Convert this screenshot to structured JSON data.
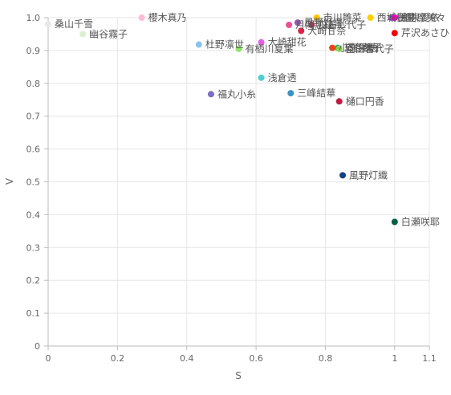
{
  "chart_data": {
    "type": "scatter",
    "xlabel": "S",
    "ylabel": "V",
    "xlim": [
      0,
      1.1
    ],
    "ylim": [
      0,
      1.0
    ],
    "x_ticks": [
      "0",
      "0.2",
      "0.4",
      "0.6",
      "0.8",
      "1",
      "1.1"
    ],
    "y_ticks": [
      "0",
      "0.1",
      "0.2",
      "0.3",
      "0.4",
      "0.5",
      "0.6",
      "0.7",
      "0.8",
      "0.9",
      "1.0"
    ],
    "grid": true,
    "points": [
      {
        "label": "桑山千雪",
        "x": 0.0,
        "y": 0.98,
        "color": "#e8e8e8"
      },
      {
        "label": "櫻木真乃",
        "x": 0.27,
        "y": 1.0,
        "color": "#ffbad6"
      },
      {
        "label": "幽谷霧子",
        "x": 0.1,
        "y": 0.95,
        "color": "#d8f0cf"
      },
      {
        "label": "杜野凛世",
        "x": 0.435,
        "y": 0.918,
        "color": "#89c3eb"
      },
      {
        "label": "有栖川夏葉",
        "x": 0.55,
        "y": 0.905,
        "color": "#90e667"
      },
      {
        "label": "大崎甜花",
        "x": 0.615,
        "y": 0.925,
        "color": "#e75bec"
      },
      {
        "label": "浅倉透",
        "x": 0.615,
        "y": 0.817,
        "color": "#50d0d0"
      },
      {
        "label": "福丸小糸",
        "x": 0.47,
        "y": 0.767,
        "color": "#7a6ec4"
      },
      {
        "label": "三峰結華",
        "x": 0.7,
        "y": 0.77,
        "color": "#3b91c4"
      },
      {
        "label": "月岡恋鐘",
        "x": 0.695,
        "y": 0.978,
        "color": "#f04d97"
      },
      {
        "label": "風野灯織",
        "x": 0.72,
        "y": 0.985,
        "color": "#9b59b6"
      },
      {
        "label": "白石紗代子",
        "x": 0.76,
        "y": 0.978,
        "color": "#c03060"
      },
      {
        "label": "大崎甘奈",
        "x": 0.73,
        "y": 0.96,
        "color": "#e0204b"
      },
      {
        "label": "市川雛菜",
        "x": 0.775,
        "y": 1.0,
        "color": "#ffc602"
      },
      {
        "label": "黛冬優子",
        "x": 0.835,
        "y": 0.908,
        "color": "#3ab06c"
      },
      {
        "label": "小宮果穂",
        "x": 0.82,
        "y": 0.908,
        "color": "#e5461c"
      },
      {
        "label": "園田智代子",
        "x": 0.84,
        "y": 0.905,
        "color": "#8ad44b"
      },
      {
        "label": "樋口円香",
        "x": 0.84,
        "y": 0.745,
        "color": "#be1e3e"
      },
      {
        "label": "風野灯織",
        "x": 0.85,
        "y": 0.52,
        "color": "#144384"
      },
      {
        "label": "西城樹里",
        "x": 0.93,
        "y": 1.0,
        "color": "#ffcf00"
      },
      {
        "label": "田中摩美々",
        "x": 0.99,
        "y": 1.0,
        "color": "#a846fb"
      },
      {
        "label": "和泉愛依",
        "x": 1.0,
        "y": 1.0,
        "color": "#ff00c8"
      },
      {
        "label": "芹沢あさひ",
        "x": 1.0,
        "y": 0.953,
        "color": "#f30100"
      },
      {
        "label": "白瀬咲耶",
        "x": 1.0,
        "y": 0.378,
        "color": "#006047"
      }
    ]
  }
}
